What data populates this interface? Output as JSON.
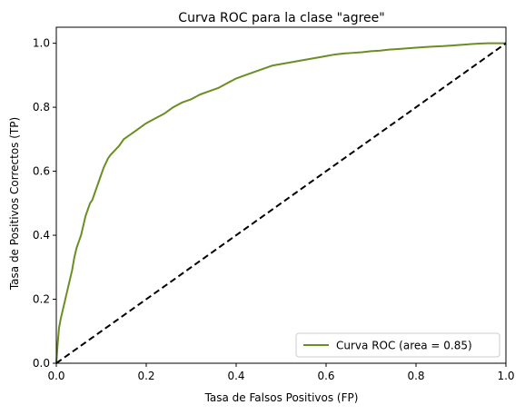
{
  "chart_data": {
    "type": "line",
    "title": "Curva ROC para la clase \"agree\"",
    "xlabel": "Tasa de Falsos Positivos (FP)",
    "ylabel": "Tasa de Positivos Correctos (TP)",
    "xlim": [
      0.0,
      1.0
    ],
    "ylim": [
      0.0,
      1.05
    ],
    "x_ticks": [
      0.0,
      0.2,
      0.4,
      0.6,
      0.8,
      1.0
    ],
    "y_ticks": [
      0.0,
      0.2,
      0.4,
      0.6,
      0.8,
      1.0
    ],
    "x_tick_labels": [
      "0.0",
      "0.2",
      "0.4",
      "0.6",
      "0.8",
      "1.0"
    ],
    "y_tick_labels": [
      "0.0",
      "0.2",
      "0.4",
      "0.6",
      "0.8",
      "1.0"
    ],
    "grid": false,
    "legend": {
      "placement": "lower-right",
      "entries": [
        "Curva ROC (area = 0.85)"
      ]
    },
    "series": [
      {
        "name": "Curva ROC (area = 0.85)",
        "color": "#6b8e23",
        "style": "solid",
        "x": [
          0.0,
          0.003,
          0.006,
          0.01,
          0.015,
          0.02,
          0.025,
          0.03,
          0.035,
          0.04,
          0.045,
          0.05,
          0.055,
          0.06,
          0.065,
          0.07,
          0.075,
          0.08,
          0.085,
          0.09,
          0.095,
          0.1,
          0.105,
          0.11,
          0.115,
          0.12,
          0.13,
          0.14,
          0.15,
          0.16,
          0.17,
          0.18,
          0.19,
          0.2,
          0.22,
          0.24,
          0.26,
          0.28,
          0.3,
          0.32,
          0.34,
          0.36,
          0.38,
          0.4,
          0.42,
          0.44,
          0.46,
          0.48,
          0.5,
          0.52,
          0.54,
          0.56,
          0.58,
          0.6,
          0.62,
          0.64,
          0.66,
          0.68,
          0.7,
          0.72,
          0.74,
          0.76,
          0.78,
          0.8,
          0.83,
          0.86,
          0.88,
          0.9,
          0.92,
          0.94,
          0.96,
          0.98,
          1.0
        ],
        "y": [
          0.0,
          0.06,
          0.11,
          0.14,
          0.17,
          0.2,
          0.23,
          0.26,
          0.29,
          0.33,
          0.36,
          0.38,
          0.4,
          0.43,
          0.46,
          0.48,
          0.5,
          0.51,
          0.53,
          0.55,
          0.57,
          0.59,
          0.61,
          0.625,
          0.64,
          0.65,
          0.665,
          0.68,
          0.7,
          0.71,
          0.72,
          0.73,
          0.74,
          0.75,
          0.765,
          0.78,
          0.8,
          0.815,
          0.825,
          0.84,
          0.85,
          0.86,
          0.875,
          0.89,
          0.9,
          0.91,
          0.92,
          0.93,
          0.935,
          0.94,
          0.945,
          0.95,
          0.955,
          0.96,
          0.965,
          0.968,
          0.97,
          0.972,
          0.975,
          0.977,
          0.98,
          0.982,
          0.984,
          0.986,
          0.989,
          0.991,
          0.993,
          0.995,
          0.997,
          0.999,
          1.0,
          1.0,
          1.0
        ]
      },
      {
        "name": "",
        "color": "#000000",
        "style": "dashed",
        "x": [
          0.0,
          1.0
        ],
        "y": [
          0.0,
          1.0
        ]
      }
    ]
  }
}
